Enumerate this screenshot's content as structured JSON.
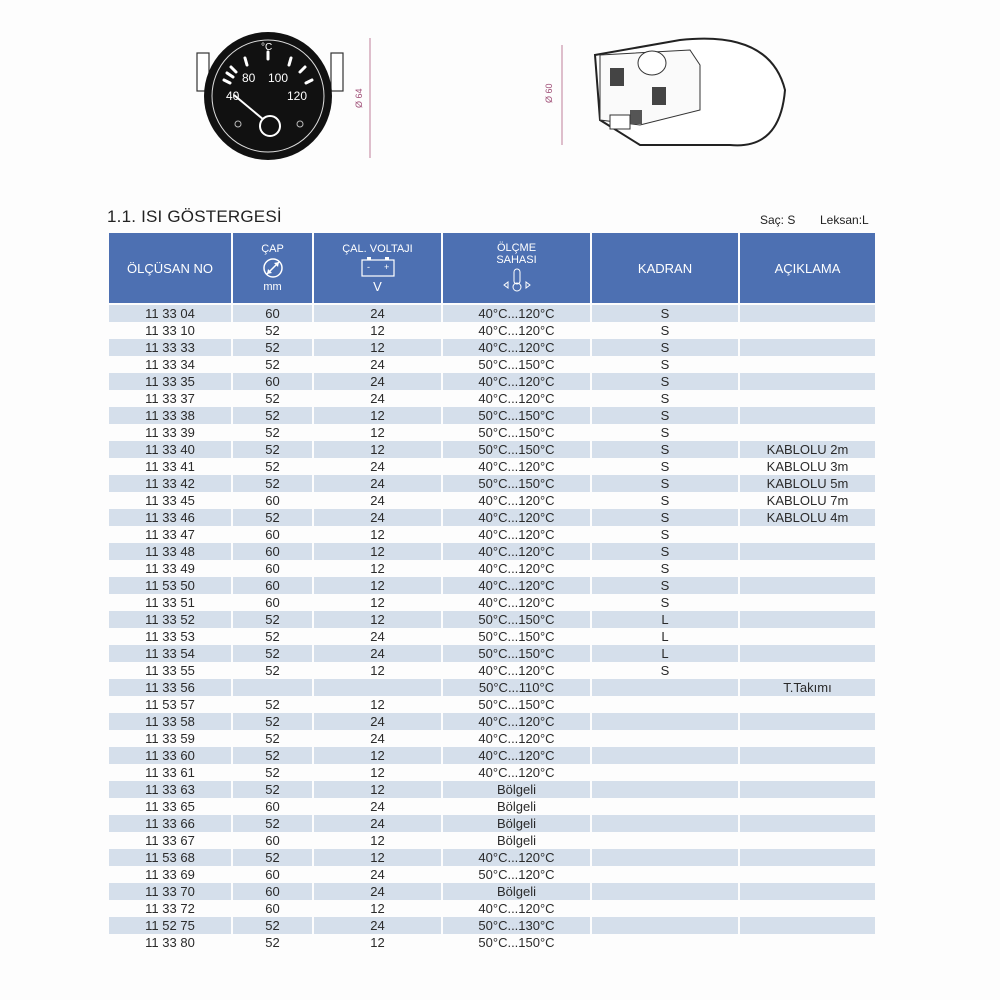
{
  "figures": {
    "gauge_scale": [
      "40",
      "80",
      "100",
      "120"
    ],
    "gauge_unit": "°C",
    "gauge_dimension": "Ø 64",
    "housing_dimension": "Ø 60"
  },
  "section_title": "1.1. ISI GÖSTERGESİ",
  "legend": {
    "sac": "Saç: S",
    "leksan": "Leksan:L"
  },
  "colors": {
    "header": "#4d70b2",
    "row_alt": "#d5dfeb"
  },
  "table": {
    "headers": {
      "part_no": "ÖLÇÜSAN NO",
      "diameter": "ÇAP",
      "diameter_unit": "mm",
      "voltage": "ÇAL. VOLTAJI",
      "voltage_unit": "V",
      "range_line1": "ÖLÇME",
      "range_line2": "SAHASI",
      "dial": "KADRAN",
      "description": "AÇIKLAMA"
    },
    "rows": [
      [
        "11 33 04",
        "60",
        "24",
        "40°C...120°C",
        "S",
        ""
      ],
      [
        "11 33 10",
        "52",
        "12",
        "40°C...120°C",
        "S",
        ""
      ],
      [
        "11 33 33",
        "52",
        "12",
        "40°C...120°C",
        "S",
        ""
      ],
      [
        "11 33 34",
        "52",
        "24",
        "50°C...150°C",
        "S",
        ""
      ],
      [
        "11 33 35",
        "60",
        "24",
        "40°C...120°C",
        "S",
        ""
      ],
      [
        "11 33 37",
        "52",
        "24",
        "40°C...120°C",
        "S",
        ""
      ],
      [
        "11 33 38",
        "52",
        "12",
        "50°C...150°C",
        "S",
        ""
      ],
      [
        "11 33 39",
        "52",
        "12",
        "50°C...150°C",
        "S",
        ""
      ],
      [
        "11 33 40",
        "52",
        "12",
        "50°C...150°C",
        "S",
        "KABLOLU 2m"
      ],
      [
        "11 33 41",
        "52",
        "24",
        "40°C...120°C",
        "S",
        "KABLOLU 3m"
      ],
      [
        "11 33 42",
        "52",
        "24",
        "50°C...150°C",
        "S",
        "KABLOLU 5m"
      ],
      [
        "11 33 45",
        "60",
        "24",
        "40°C...120°C",
        "S",
        "KABLOLU 7m"
      ],
      [
        "11 33 46",
        "52",
        "24",
        "40°C...120°C",
        "S",
        "KABLOLU 4m"
      ],
      [
        "11 33 47",
        "60",
        "12",
        "40°C...120°C",
        "S",
        ""
      ],
      [
        "11 33 48",
        "60",
        "12",
        "40°C...120°C",
        "S",
        ""
      ],
      [
        "11 33 49",
        "60",
        "12",
        "40°C...120°C",
        "S",
        ""
      ],
      [
        "11 53 50",
        "60",
        "12",
        "40°C...120°C",
        "S",
        ""
      ],
      [
        "11 33 51",
        "60",
        "12",
        "40°C...120°C",
        "S",
        ""
      ],
      [
        "11 33 52",
        "52",
        "12",
        "50°C...150°C",
        "L",
        ""
      ],
      [
        "11 33 53",
        "52",
        "24",
        "50°C...150°C",
        "L",
        ""
      ],
      [
        "11 33 54",
        "52",
        "24",
        "50°C...150°C",
        "L",
        ""
      ],
      [
        "11 33 55",
        "52",
        "12",
        "40°C...120°C",
        "S",
        ""
      ],
      [
        "11 33 56",
        "",
        "",
        "50°C...110°C",
        "",
        "T.Takımı"
      ],
      [
        "11 53 57",
        "52",
        "12",
        "50°C...150°C",
        "",
        ""
      ],
      [
        "11 33 58",
        "52",
        "24",
        "40°C...120°C",
        "",
        ""
      ],
      [
        "11 33 59",
        "52",
        "24",
        "40°C...120°C",
        "",
        ""
      ],
      [
        "11 33 60",
        "52",
        "12",
        "40°C...120°C",
        "",
        ""
      ],
      [
        "11 33 61",
        "52",
        "12",
        "40°C...120°C",
        "",
        ""
      ],
      [
        "11 33 63",
        "52",
        "12",
        "Bölgeli",
        "",
        ""
      ],
      [
        "11 33 65",
        "60",
        "24",
        "Bölgeli",
        "",
        ""
      ],
      [
        "11 33 66",
        "52",
        "24",
        "Bölgeli",
        "",
        ""
      ],
      [
        "11 33 67",
        "60",
        "12",
        "Bölgeli",
        "",
        ""
      ],
      [
        "11 53 68",
        "52",
        "12",
        "40°C...120°C",
        "",
        ""
      ],
      [
        "11 33 69",
        "60",
        "24",
        "50°C...120°C",
        "",
        ""
      ],
      [
        "11 33 70",
        "60",
        "24",
        "Bölgeli",
        "",
        ""
      ],
      [
        "11 33 72",
        "60",
        "12",
        "40°C...120°C",
        "",
        ""
      ],
      [
        "11 52 75",
        "52",
        "24",
        "50°C...130°C",
        "",
        ""
      ],
      [
        "11 33 80",
        "52",
        "12",
        "50°C...150°C",
        "",
        ""
      ]
    ]
  }
}
